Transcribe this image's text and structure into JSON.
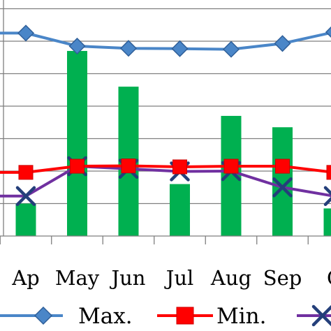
{
  "chart_data": {
    "type": "bar-line-combo",
    "categories": [
      "Ap",
      "May",
      "Jun",
      "Jul",
      "Aug",
      "Sep",
      "O"
    ],
    "bar_series": {
      "name": "",
      "color": "#00b050",
      "values": [
        1.0,
        5.7,
        4.6,
        1.6,
        3.7,
        3.35,
        0.85
      ]
    },
    "line_series": [
      {
        "name": "Max.",
        "color": "#4a86c8",
        "marker": "diamond",
        "values": [
          6.25,
          5.85,
          5.78,
          5.77,
          5.75,
          5.93,
          6.28
        ]
      },
      {
        "name": "Min.",
        "color": "#ff0000",
        "marker": "square",
        "values": [
          1.96,
          2.15,
          2.16,
          2.13,
          2.15,
          2.15,
          1.96
        ]
      },
      {
        "name": "",
        "color": "#7030a0",
        "marker": "x",
        "values": [
          1.23,
          2.15,
          2.07,
          1.99,
          2.0,
          1.5,
          1.23
        ]
      }
    ],
    "ylim": [
      0,
      7.3
    ],
    "grid": true,
    "legend_position": "bottom",
    "title": "",
    "xlabel": "",
    "ylabel": ""
  }
}
